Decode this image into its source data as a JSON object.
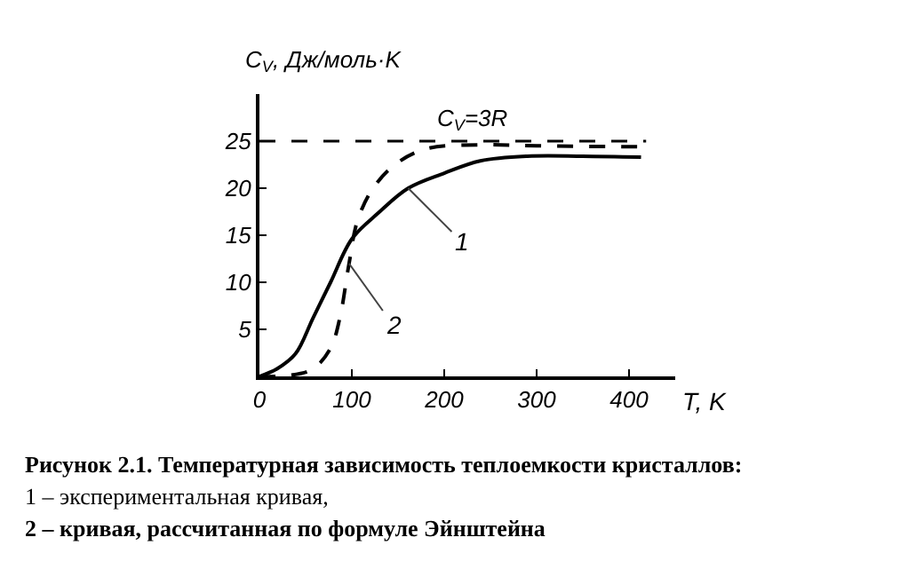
{
  "chart_data": {
    "type": "line",
    "ylabel": "C$_{V}$, Дж/моль·K",
    "xlabel": "T, K",
    "xlim": [
      0,
      450
    ],
    "xticks": [
      0,
      100,
      200,
      300,
      400
    ],
    "ylim": [
      0,
      30
    ],
    "yticks": [
      5,
      10,
      15,
      20,
      25
    ],
    "grid": false,
    "legend": false,
    "marker": "none",
    "series": [
      {
        "name": "1",
        "color": "#000000",
        "line_style": "solid",
        "x": [
          0,
          19,
          39,
          58,
          77,
          100,
          129,
          161,
          200,
          239,
          290,
          350,
          413
        ],
        "values": [
          0,
          0.8,
          2.4,
          6.2,
          10,
          14.6,
          17.4,
          20,
          21.6,
          22.9,
          23.4,
          23.4,
          23.3
        ]
      },
      {
        "name": "2",
        "color": "#000000",
        "line_style": "dashed",
        "x": [
          0,
          32,
          58,
          77,
          87,
          97,
          106,
          123,
          148,
          181,
          239,
          300,
          413
        ],
        "values": [
          0,
          0.1,
          0.8,
          3,
          6.2,
          12,
          16.5,
          20,
          22.6,
          24.2,
          24.6,
          24.5,
          24.4
        ]
      }
    ],
    "ref_lines": [
      {
        "axis": "y",
        "value": 25,
        "line_style": "dashed",
        "color": "#000000"
      }
    ],
    "annotations": [
      {
        "text": "C$_{V}$=3R",
        "x": 230,
        "y": 25
      },
      "Рисунок 2.1. Температурная зависимость теплоемкости кристаллов:",
      "1 – экспериментальная кривая,",
      "2 – кривая, рассчитанная по формуле Эйнштейна"
    ]
  }
}
